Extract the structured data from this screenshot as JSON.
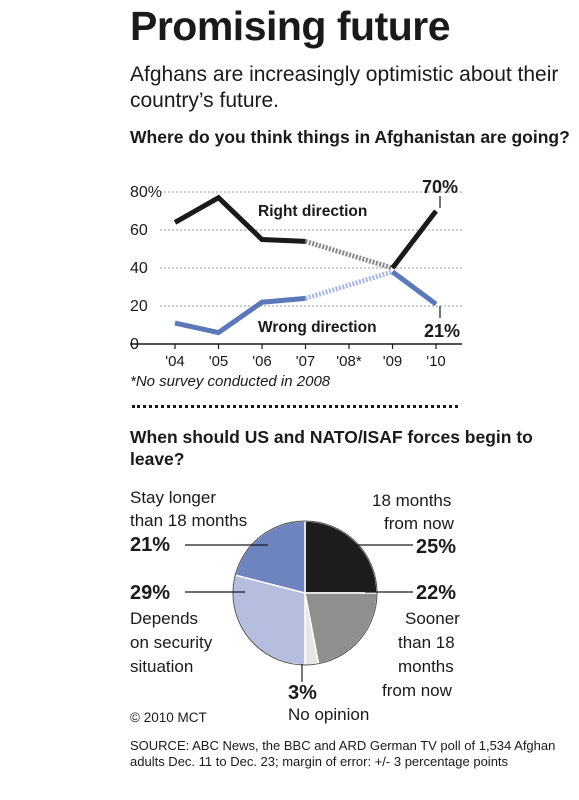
{
  "header": {
    "title": "Promising future",
    "subtitle": "Afghans are increasingly optimistic about their country’s future."
  },
  "chart_data": [
    {
      "type": "line",
      "title": "Where do you think things in Afghanistan are going?",
      "categories": [
        "'04",
        "'05",
        "'06",
        "'07",
        "'08*",
        "'09",
        "'10"
      ],
      "ylim": [
        0,
        80
      ],
      "yticks": [
        "0",
        "20",
        "40",
        "60",
        "80%"
      ],
      "grid": true,
      "series": [
        {
          "name": "Right direction",
          "values": [
            64,
            77,
            55,
            54,
            null,
            40,
            70
          ],
          "color": "#1a1a1a",
          "end_label": "70%"
        },
        {
          "name": "Wrong direction",
          "values": [
            11,
            6,
            22,
            24,
            null,
            38,
            21
          ],
          "color": "#5b78b8",
          "end_label": "21%"
        }
      ],
      "annotation": "*No survey conducted in 2008"
    },
    {
      "type": "pie",
      "title": "When should US and NATO/ISAF forces begin to leave?",
      "slices": [
        {
          "label": "18 months from now",
          "value": 25,
          "display": "25%",
          "color": "#1c1c1c"
        },
        {
          "label": "Sooner than 18 months from now",
          "value": 22,
          "display": "22%",
          "color": "#8f8f8f"
        },
        {
          "label": "No opinion",
          "value": 3,
          "display": "3%",
          "color": "#e6e6e6"
        },
        {
          "label": "Depends on security situation",
          "value": 29,
          "display": "29%",
          "color": "#b5bedf"
        },
        {
          "label": "Stay longer than 18 months",
          "value": 21,
          "display": "21%",
          "color": "#6d84bf"
        }
      ]
    }
  ],
  "pie_labels": {
    "l18a": "18 months",
    "l18b": "from now",
    "soonA": "Sooner",
    "soonB": "than 18",
    "soonC": "months",
    "soonD": "from now",
    "noop": "No opinion",
    "depA": "Depends",
    "depB": "on security",
    "depC": "situation",
    "stayA": "Stay longer",
    "stayB": "than 18 months"
  },
  "footer": {
    "credit": "© 2010 MCT",
    "source": "SOURCE: ABC News, the BBC and ARD German TV poll of 1,534 Afghan adults Dec. 11 to Dec. 23; margin of error: +/- 3 percentage points"
  }
}
